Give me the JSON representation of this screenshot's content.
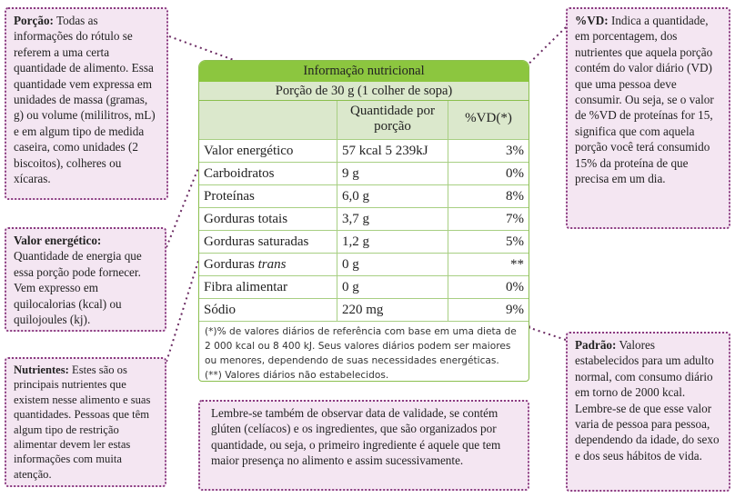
{
  "table": {
    "title": "Informação nutricional",
    "portion": "Porção de 30 g (1 colher de sopa)",
    "headers": [
      "Quantidade por porção",
      "%VD(*)"
    ],
    "rows": [
      {
        "name": "Valor energético",
        "qty": "57 kcal 5 239kJ",
        "vd": "3%"
      },
      {
        "name": "Carboidratos",
        "qty": "9 g",
        "vd": "0%"
      },
      {
        "name": "Proteínas",
        "qty": "6,0 g",
        "vd": "8%"
      },
      {
        "name": "Gorduras totais",
        "qty": "3,7 g",
        "vd": "7%"
      },
      {
        "name": "Gorduras saturadas",
        "qty": "1,2 g",
        "vd": "5%"
      },
      {
        "name": "Gorduras",
        "name_italic": "trans",
        "qty": "0 g",
        "vd": "**"
      },
      {
        "name": "Fibra alimentar",
        "qty": "0 g",
        "vd": "0%"
      },
      {
        "name": "Sódio",
        "qty": "220 mg",
        "vd": "9%"
      }
    ],
    "footnotes": [
      "(*)% de valores diários de referência com base em uma dieta de 2 000 kcal ou 8 400 kJ. Seus valores diários podem ser maiores ou menores, dependendo de suas necessidades energéticas.",
      "(**) Valores diários não estabelecidos."
    ]
  },
  "callouts": {
    "porcao": {
      "title": "Porção:",
      "text": "Todas as informações do rótulo se referem a uma certa quantidade de alimento. Essa quantidade vem expressa em unidades de massa (gramas, g) ou volume (mililitros, mL) e em algum tipo de medida caseira, como unidades (2 biscoitos), colheres ou xícaras."
    },
    "vd": {
      "title": "%VD:",
      "text": "Indica a quantidade, em porcentagem, dos nutrientes que aquela porção contém do valor diário (VD) que uma pessoa deve consumir. Ou seja, se o valor de %VD de proteínas for 15, significa que com aquela porção você terá consumido 15% da proteína de que precisa em um dia."
    },
    "energia": {
      "title": "Valor energético:",
      "text": "Quantidade de energia que essa porção pode fornecer. Vem expresso em quilocalorias (kcal) ou quilojoules (kj)."
    },
    "nutrientes": {
      "title": "Nutrientes:",
      "text": "Estes são os principais nutrientes que existem nesse alimento e suas quantidades. Pessoas que têm algum tipo de restrição alimentar devem ler estas informações com muita atenção."
    },
    "padrao": {
      "title": "Padrão:",
      "text": "Valores estabelecidos para um adulto normal, com consumo diário em torno de 2000 kcal. Lembre-se de que esse valor varia de pessoa para pessoa, dependendo da idade, do sexo e dos seus hábitos de vida."
    },
    "lembre": {
      "text": "Lembre-se também de observar data de validade, se contém glúten (celíacos) e os ingredientes, que são organizados por quantidade, ou seja, o primeiro ingrediente é aquele que tem maior presença no alimento e assim sucessivamente."
    }
  }
}
